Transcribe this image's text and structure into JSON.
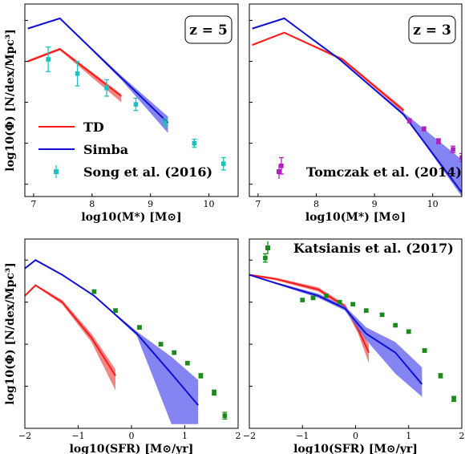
{
  "colors": {
    "td": "#ff1a1a",
    "td_band": "#f07070",
    "simba": "#1010d0",
    "simba_band": "#6f6ff0",
    "song": "#20c0c0",
    "tomczak": "#b020c0",
    "katsianis": "#1a8a1a"
  },
  "chart_data": [
    {
      "type": "line",
      "panel": "top-left",
      "xlabel": "log10(M*) [M⊙]",
      "ylabel": "log10(Φ) [N/dex/Mpc³]",
      "xlim": [
        6.85,
        10.5
      ],
      "ylim": [
        -6.3,
        -1.6
      ],
      "xticks": [
        "7",
        "8",
        "9",
        "10"
      ],
      "grid": false,
      "annotation": "z = 5",
      "legend": {
        "placement": "bottom-left",
        "entries": [
          "TD",
          "Simba",
          "Song et al. (2016)"
        ]
      },
      "series": [
        {
          "name": "TD",
          "color_key": "td",
          "x": [
            6.9,
            7.45,
            8.5
          ],
          "y": [
            -3.0,
            -2.7,
            -3.85
          ],
          "band_low": [
            -3.03,
            -2.73,
            -4.0
          ],
          "band_high": [
            -2.97,
            -2.67,
            -3.8
          ]
        },
        {
          "name": "Simba",
          "color_key": "simba",
          "x": [
            6.9,
            7.45,
            8.5,
            9.3
          ],
          "y": [
            -2.2,
            -1.95,
            -3.4,
            -4.5
          ],
          "band_low": [
            -2.2,
            -1.95,
            -3.45,
            -4.75
          ],
          "band_high": [
            -2.2,
            -1.95,
            -3.35,
            -4.35
          ]
        },
        {
          "name": "Song et al. (2016)",
          "color_key": "song",
          "x": [
            7.25,
            7.75,
            8.25,
            8.75,
            9.25,
            9.75,
            10.25
          ],
          "y": [
            -2.95,
            -3.3,
            -3.65,
            -4.05,
            -4.5,
            -5.0,
            -5.5
          ],
          "err": [
            0.3,
            0.3,
            0.2,
            0.15,
            0.1,
            0.1,
            0.15
          ]
        }
      ]
    },
    {
      "type": "line",
      "panel": "top-right",
      "xlabel": "log10(M*) [M⊙]",
      "ylabel": "",
      "xlim": [
        6.85,
        10.5
      ],
      "ylim": [
        -6.3,
        -1.6
      ],
      "xticks": [
        "7",
        "8",
        "9",
        "10"
      ],
      "grid": false,
      "annotation": "z = 3",
      "legend": {
        "placement": "bottom-center",
        "entries": [
          "Tomczak et al. (2014)"
        ]
      },
      "series": [
        {
          "name": "TD",
          "color_key": "td",
          "x": [
            6.9,
            7.45,
            8.45,
            9.5
          ],
          "y": [
            -2.6,
            -2.3,
            -2.95,
            -4.2
          ],
          "band_low": [
            -2.62,
            -2.32,
            -2.98,
            -4.25
          ],
          "band_high": [
            -2.58,
            -2.28,
            -2.92,
            -4.15
          ]
        },
        {
          "name": "Simba",
          "color_key": "simba",
          "x": [
            6.9,
            7.45,
            8.4,
            9.5,
            10.5
          ],
          "y": [
            -2.2,
            -1.95,
            -2.95,
            -4.3,
            -6.2
          ],
          "band_low": [
            -2.2,
            -1.95,
            -2.95,
            -4.3,
            -6.3
          ],
          "band_high": [
            -2.2,
            -1.95,
            -2.95,
            -4.25,
            -5.4
          ]
        },
        {
          "name": "Tomczak et al. (2014)",
          "color_key": "tomczak",
          "x": [
            7.4,
            9.6,
            9.85,
            10.1,
            10.35,
            10.5
          ],
          "y": [
            -5.55,
            -4.45,
            -4.65,
            -4.95,
            -5.15,
            -5.35
          ],
          "err": [
            0.2,
            0.05,
            0.05,
            0.06,
            0.08,
            0.1
          ]
        }
      ]
    },
    {
      "type": "line",
      "panel": "bottom-left",
      "xlabel": "log10(SFR) [M⊙/yr]",
      "ylabel": "log10(Φ) [N/dex/Mpc³]",
      "xlim": [
        -2,
        2
      ],
      "ylim": [
        -6.0,
        -1.5
      ],
      "xticks": [
        "−2",
        "−1",
        "0",
        "1",
        "2"
      ],
      "grid": false,
      "series": [
        {
          "name": "TD",
          "color_key": "td",
          "x": [
            -2.0,
            -1.8,
            -1.3,
            -0.75,
            -0.3
          ],
          "y": [
            -2.85,
            -2.6,
            -3.0,
            -3.85,
            -4.75
          ],
          "band_low": [
            -2.87,
            -2.62,
            -3.05,
            -3.95,
            -5.1
          ],
          "band_high": [
            -2.83,
            -2.58,
            -2.95,
            -3.75,
            -4.6
          ]
        },
        {
          "name": "Simba",
          "color_key": "simba",
          "x": [
            -2.0,
            -1.8,
            -1.3,
            -0.7,
            0.1,
            0.75,
            1.25
          ],
          "y": [
            -2.2,
            -2.0,
            -2.35,
            -2.85,
            -3.75,
            -4.7,
            -5.45
          ],
          "band_low": [
            -2.2,
            -2.0,
            -2.35,
            -2.85,
            -3.8,
            -5.9,
            -5.9
          ],
          "band_high": [
            -2.2,
            -2.0,
            -2.35,
            -2.85,
            -3.7,
            -4.3,
            -4.85
          ]
        },
        {
          "name": "Katsianis et al. (2017)",
          "color_key": "katsianis",
          "x": [
            -0.7,
            -0.3,
            0.15,
            0.55,
            0.8,
            1.05,
            1.3,
            1.55,
            1.75
          ],
          "y": [
            -2.75,
            -3.2,
            -3.6,
            -4.0,
            -4.2,
            -4.45,
            -4.75,
            -5.15,
            -5.7
          ],
          "err": [
            0.04,
            0.04,
            0.04,
            0.04,
            0.04,
            0.04,
            0.05,
            0.06,
            0.08
          ]
        }
      ]
    },
    {
      "type": "line",
      "panel": "top-right-bottom",
      "xlabel": "log10(SFR) [M⊙/yr]",
      "ylabel": "",
      "xlim": [
        -2,
        2
      ],
      "ylim": [
        -6.0,
        -1.5
      ],
      "xticks": [
        "−2",
        "−1",
        "0",
        "1",
        "2"
      ],
      "grid": false,
      "legend": {
        "placement": "top-right",
        "entries": [
          "Katsianis et al. (2017)"
        ]
      },
      "series": [
        {
          "name": "TD",
          "color_key": "td",
          "x": [
            -2.0,
            -1.5,
            -0.7,
            -0.2,
            0.05,
            0.25
          ],
          "y": [
            -2.35,
            -2.45,
            -2.7,
            -3.1,
            -3.65,
            -4.2
          ],
          "band_low": [
            -2.37,
            -2.48,
            -2.75,
            -3.15,
            -3.75,
            -4.45
          ],
          "band_high": [
            -2.33,
            -2.42,
            -2.65,
            -3.05,
            -3.55,
            -4.0
          ]
        },
        {
          "name": "Simba",
          "color_key": "simba",
          "x": [
            -2.0,
            -1.5,
            -0.7,
            -0.2,
            0.2,
            0.75,
            1.25
          ],
          "y": [
            -2.35,
            -2.55,
            -2.85,
            -3.15,
            -3.75,
            -4.2,
            -4.95
          ],
          "band_low": [
            -2.35,
            -2.57,
            -2.9,
            -3.2,
            -3.9,
            -4.7,
            -5.25
          ],
          "band_high": [
            -2.35,
            -2.53,
            -2.8,
            -3.1,
            -3.6,
            -3.95,
            -4.55
          ]
        },
        {
          "name": "Katsianis et al. (2017)",
          "color_key": "katsianis",
          "x": [
            -1.7,
            -1.0,
            -0.8,
            -0.55,
            -0.3,
            -0.05,
            0.2,
            0.5,
            0.75,
            1.0,
            1.3,
            1.6,
            1.85
          ],
          "y": [
            -1.95,
            -2.95,
            -2.9,
            -2.85,
            -3.0,
            -3.05,
            -3.2,
            -3.3,
            -3.55,
            -3.7,
            -4.15,
            -4.75,
            -5.3
          ],
          "err": [
            0.1,
            0.03,
            0.03,
            0.03,
            0.03,
            0.03,
            0.03,
            0.03,
            0.03,
            0.04,
            0.04,
            0.05,
            0.06
          ]
        }
      ]
    }
  ]
}
